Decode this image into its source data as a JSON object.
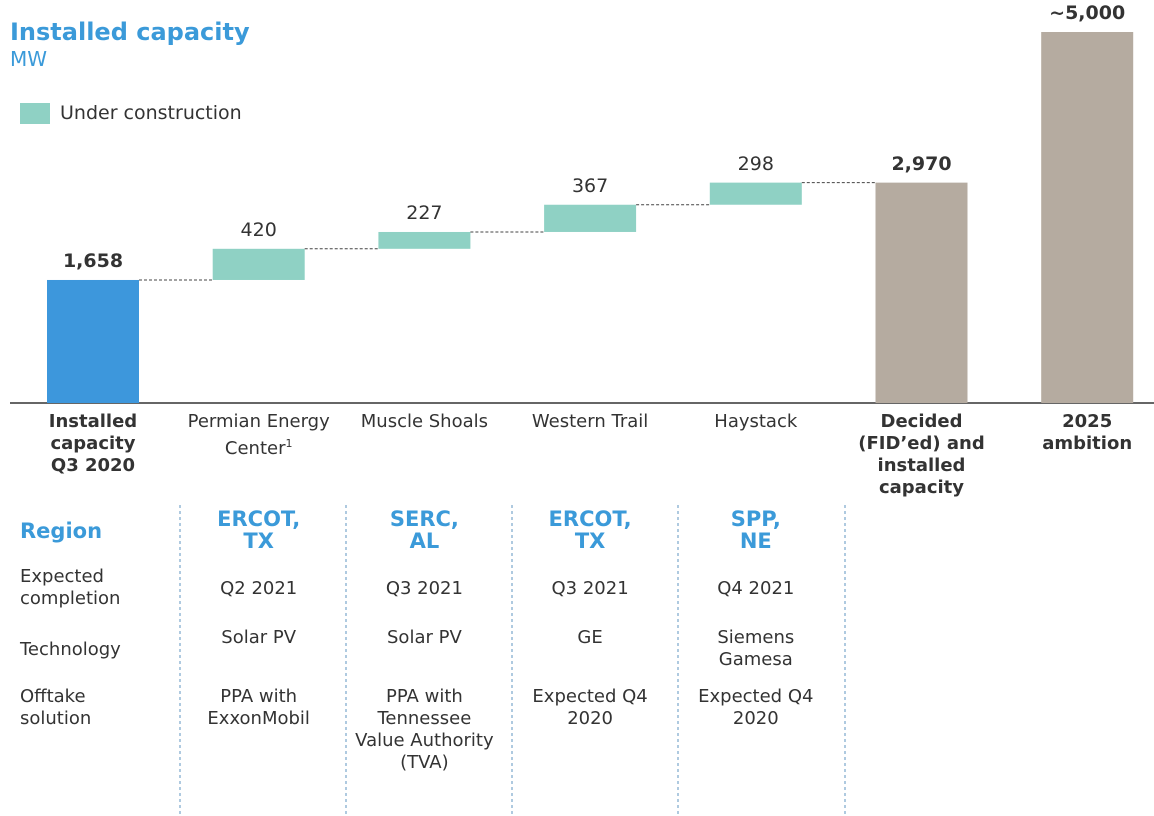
{
  "chart_data": {
    "type": "waterfall",
    "title": "Installed capacity",
    "subtitle": "MW",
    "categories": [
      "Installed capacity Q3 2020",
      "Permian Energy Center",
      "Muscle Shoals",
      "Western Trail",
      "Haystack",
      "Decided (FID’ed) and installed capacity",
      "2025 ambition"
    ],
    "category_notes": [
      null,
      "1",
      null,
      null,
      null,
      null,
      null
    ],
    "values": [
      1658,
      420,
      227,
      367,
      298,
      2970,
      5000
    ],
    "value_labels": [
      "1,658",
      "420",
      "227",
      "367",
      "298",
      "2,970",
      "~5,000"
    ],
    "kinds": [
      "total",
      "increment",
      "increment",
      "increment",
      "increment",
      "total",
      "total"
    ],
    "colors": [
      "#3d97dc",
      "#8fd1c4",
      "#8fd1c4",
      "#8fd1c4",
      "#8fd1c4",
      "#b5aba0",
      "#b5aba0"
    ],
    "legend": {
      "name": "Under construction",
      "color": "#8fd1c4"
    }
  },
  "table": {
    "row_labels": [
      "Region",
      "Expected completion",
      "Technology",
      "Offtake solution"
    ],
    "columns": [
      {
        "region": "ERCOT, TX",
        "completion": "Q2 2021",
        "technology": "Solar PV",
        "offtake": "PPA with ExxonMobil"
      },
      {
        "region": "SERC, AL",
        "completion": "Q3 2021",
        "technology": "Solar PV",
        "offtake": "PPA with Tennessee Value Authority (TVA)"
      },
      {
        "region": "ERCOT, TX",
        "completion": "Q3 2021",
        "technology": "GE",
        "offtake": "Expected Q4 2020"
      },
      {
        "region": "SPP, NE",
        "completion": "Q4 2021",
        "technology": "Siemens Gamesa",
        "offtake": "Expected Q4 2020"
      }
    ]
  }
}
